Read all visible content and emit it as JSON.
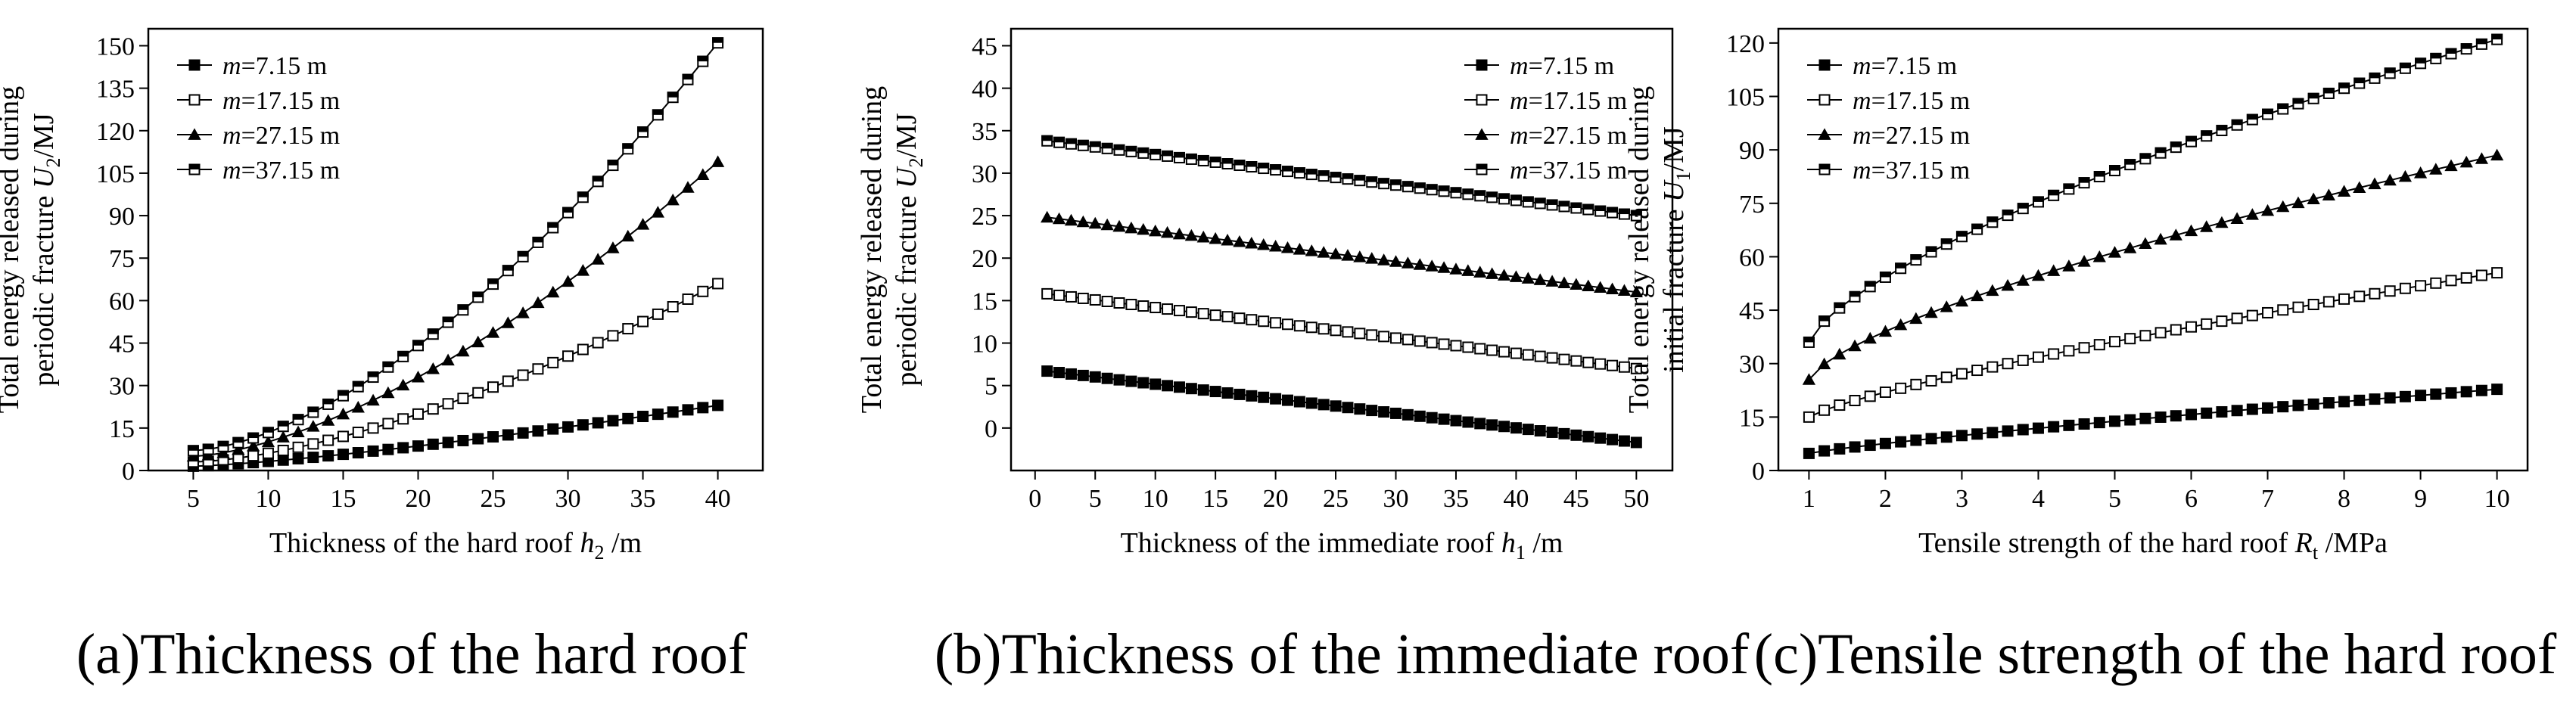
{
  "chart_data": [
    {
      "type": "line",
      "caption": "(a)Thickness of the hard roof",
      "xlabel": {
        "pre": "Thickness of the hard roof ",
        "var": "h",
        "sub": "2",
        "post": " /m"
      },
      "ylabel": {
        "line1": "Total energy released during",
        "line2pre": "periodic fracture ",
        "var": "U",
        "sub": "2",
        "post": "/MJ"
      },
      "xlim": [
        2,
        43
      ],
      "ylim": [
        0,
        156
      ],
      "xticks": [
        5,
        10,
        15,
        20,
        25,
        30,
        35,
        40
      ],
      "yticks": [
        0,
        15,
        30,
        45,
        60,
        75,
        90,
        105,
        120,
        135,
        150
      ],
      "x": {
        "start": 5,
        "end": 40,
        "count": 36
      },
      "legend_position": "top-left",
      "series": [
        {
          "name_var": "m",
          "name_rest": "=7.15 m",
          "marker": "filled-square",
          "x0": 5,
          "y0": 1.5,
          "x1": 40,
          "y1": 23,
          "curve_power": 1.3
        },
        {
          "name_var": "m",
          "name_rest": "=17.15 m",
          "marker": "open-square",
          "x0": 5,
          "y0": 3,
          "x1": 40,
          "y1": 66,
          "curve_power": 1.55
        },
        {
          "name_var": "m",
          "name_rest": "=27.15 m",
          "marker": "filled-triangle",
          "x0": 5,
          "y0": 5,
          "x1": 40,
          "y1": 109,
          "curve_power": 1.55
        },
        {
          "name_var": "m",
          "name_rest": "=37.15 m",
          "marker": "half-square",
          "x0": 5,
          "y0": 7,
          "x1": 40,
          "y1": 151,
          "curve_power": 1.6
        }
      ]
    },
    {
      "type": "line",
      "caption": "(b)Thickness of the immediate roof",
      "xlabel": {
        "pre": "Thickness of the immediate roof ",
        "var": "h",
        "sub": "1",
        "post": " /m"
      },
      "ylabel": {
        "line1": "Total energy released during",
        "line2pre": "periodic fracture ",
        "var": "U",
        "sub": "2",
        "post": "/MJ"
      },
      "xlim": [
        -2,
        53
      ],
      "ylim": [
        -5,
        47
      ],
      "xticks": [
        0,
        5,
        10,
        15,
        20,
        25,
        30,
        35,
        40,
        45,
        50
      ],
      "yticks": [
        0,
        5,
        10,
        15,
        20,
        25,
        30,
        35,
        40,
        45
      ],
      "x": {
        "start": 1,
        "end": 50,
        "count": 50
      },
      "legend_position": "top-right",
      "series": [
        {
          "name_var": "m",
          "name_rest": "=7.15 m",
          "marker": "filled-square",
          "x0": 1,
          "y0": 6.7,
          "x1": 50,
          "y1": -1.7,
          "curve_power": 1
        },
        {
          "name_var": "m",
          "name_rest": "=17.15 m",
          "marker": "open-square",
          "x0": 1,
          "y0": 15.8,
          "x1": 50,
          "y1": 7.0,
          "curve_power": 1
        },
        {
          "name_var": "m",
          "name_rest": "=27.15 m",
          "marker": "filled-triangle",
          "x0": 1,
          "y0": 24.8,
          "x1": 50,
          "y1": 16.0,
          "curve_power": 1
        },
        {
          "name_var": "m",
          "name_rest": "=37.15 m",
          "marker": "half-square",
          "x0": 1,
          "y0": 33.8,
          "x1": 50,
          "y1": 25.0,
          "curve_power": 1
        }
      ]
    },
    {
      "type": "line",
      "caption": "(c)Tensile strength of the hard roof",
      "xlabel": {
        "pre": "Tensile strength of the hard roof ",
        "var": "R",
        "sub": "t",
        "post": " /MPa"
      },
      "ylabel": {
        "line1": "Total energy released during",
        "line2pre": "initial fracture ",
        "var": "U",
        "sub": "1",
        "post": "/MJ"
      },
      "xlim": [
        0.6,
        10.4
      ],
      "ylim": [
        0,
        124
      ],
      "xticks": [
        1,
        2,
        3,
        4,
        5,
        6,
        7,
        8,
        9,
        10
      ],
      "yticks": [
        0,
        15,
        30,
        45,
        60,
        75,
        90,
        105,
        120
      ],
      "x": {
        "start": 1,
        "end": 10,
        "count": 46
      },
      "legend_position": "top-left",
      "series": [
        {
          "name_var": "m",
          "name_rest": "=7.15 m",
          "marker": "filled-square",
          "x0": 1,
          "y0": 4.8,
          "x1": 10,
          "y1": 22.8,
          "curve_power": 0.85
        },
        {
          "name_var": "m",
          "name_rest": "=17.15 m",
          "marker": "open-square",
          "x0": 1,
          "y0": 15,
          "x1": 10,
          "y1": 55.5,
          "curve_power": 0.8
        },
        {
          "name_var": "m",
          "name_rest": "=27.15 m",
          "marker": "filled-triangle",
          "x0": 1,
          "y0": 25.5,
          "x1": 10,
          "y1": 88.5,
          "curve_power": 0.7
        },
        {
          "name_var": "m",
          "name_rest": "=37.15 m",
          "marker": "half-square",
          "x0": 1,
          "y0": 36,
          "x1": 10,
          "y1": 121,
          "curve_power": 0.7
        }
      ]
    }
  ]
}
